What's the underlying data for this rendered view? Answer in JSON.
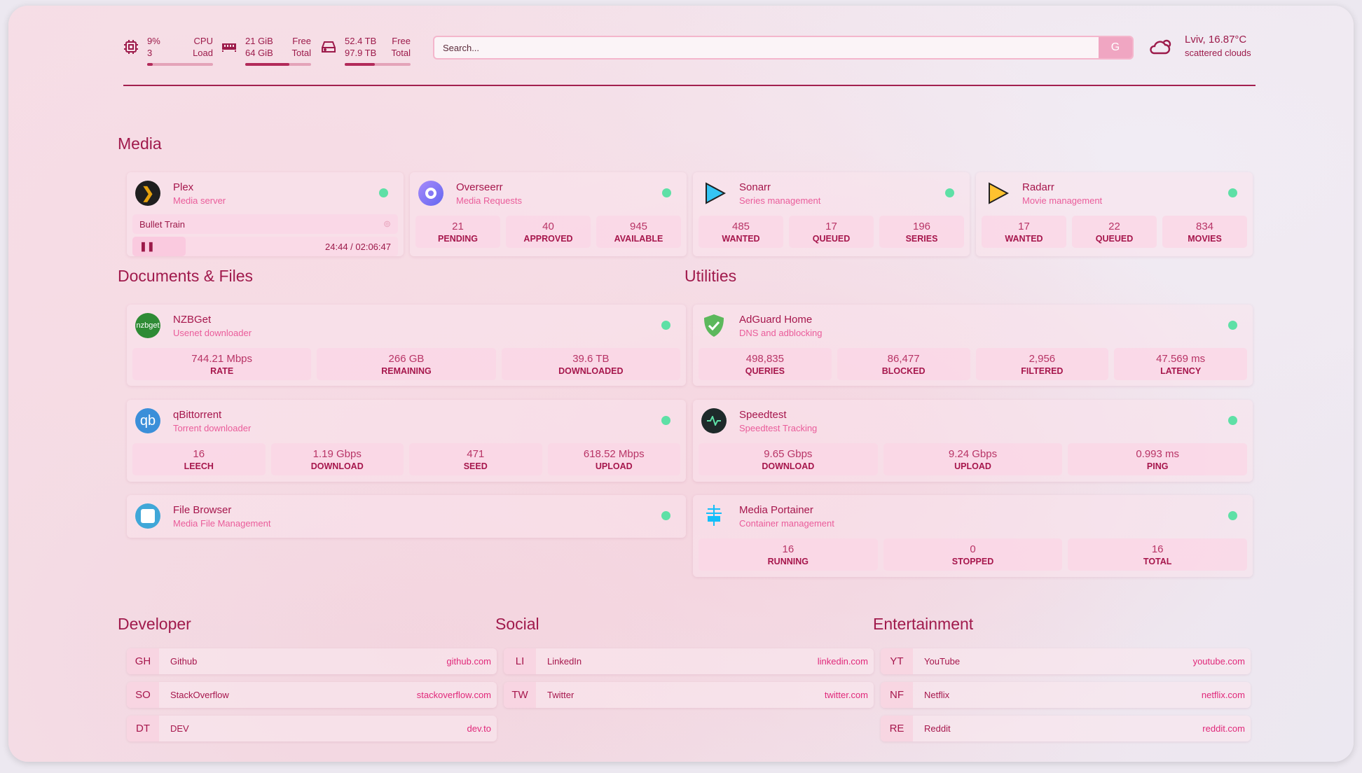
{
  "header": {
    "cpu": {
      "value": "9%",
      "label": "CPU",
      "sub_value": "3",
      "sub_label": "Load",
      "percent": 9
    },
    "memory": {
      "value": "21 GiB",
      "label": "Free",
      "sub_value": "64 GiB",
      "sub_label": "Total",
      "percent": 67
    },
    "disk": {
      "value": "52.4 TB",
      "label": "Free",
      "sub_value": "97.9 TB",
      "sub_label": "Total",
      "percent": 46
    },
    "search": {
      "placeholder": "Search...",
      "button": "G"
    },
    "weather": {
      "location_temp": "Lviv, 16.87°C",
      "condition": "scattered clouds"
    }
  },
  "sections": {
    "media": "Media",
    "documents": "Documents & Files",
    "utilities": "Utilities",
    "developer": "Developer",
    "social": "Social",
    "entertainment": "Entertainment"
  },
  "media": [
    {
      "name": "Plex",
      "desc": "Media server",
      "now_playing": "Bullet Train",
      "time": "24:44 / 02:06:47",
      "progress": 0.2
    },
    {
      "name": "Overseerr",
      "desc": "Media Requests",
      "stats": [
        {
          "v": "21",
          "k": "PENDING"
        },
        {
          "v": "40",
          "k": "APPROVED"
        },
        {
          "v": "945",
          "k": "AVAILABLE"
        }
      ]
    },
    {
      "name": "Sonarr",
      "desc": "Series management",
      "stats": [
        {
          "v": "485",
          "k": "WANTED"
        },
        {
          "v": "17",
          "k": "QUEUED"
        },
        {
          "v": "196",
          "k": "SERIES"
        }
      ]
    },
    {
      "name": "Radarr",
      "desc": "Movie management",
      "stats": [
        {
          "v": "17",
          "k": "WANTED"
        },
        {
          "v": "22",
          "k": "QUEUED"
        },
        {
          "v": "834",
          "k": "MOVIES"
        }
      ]
    }
  ],
  "documents": [
    {
      "name": "NZBGet",
      "desc": "Usenet downloader",
      "icon_text": "nzbget",
      "stats": [
        {
          "v": "744.21 Mbps",
          "k": "RATE"
        },
        {
          "v": "266 GB",
          "k": "REMAINING"
        },
        {
          "v": "39.6 TB",
          "k": "DOWNLOADED"
        }
      ]
    },
    {
      "name": "qBittorrent",
      "desc": "Torrent downloader",
      "icon_text": "qb",
      "stats": [
        {
          "v": "16",
          "k": "LEECH"
        },
        {
          "v": "1.19 Gbps",
          "k": "DOWNLOAD"
        },
        {
          "v": "471",
          "k": "SEED"
        },
        {
          "v": "618.52 Mbps",
          "k": "UPLOAD"
        }
      ]
    },
    {
      "name": "File Browser",
      "desc": "Media File Management"
    }
  ],
  "utilities": [
    {
      "name": "AdGuard Home",
      "desc": "DNS and adblocking",
      "stats": [
        {
          "v": "498,835",
          "k": "QUERIES"
        },
        {
          "v": "86,477",
          "k": "BLOCKED"
        },
        {
          "v": "2,956",
          "k": "FILTERED"
        },
        {
          "v": "47.569 ms",
          "k": "LATENCY"
        }
      ]
    },
    {
      "name": "Speedtest",
      "desc": "Speedtest Tracking",
      "stats": [
        {
          "v": "9.65 Gbps",
          "k": "DOWNLOAD"
        },
        {
          "v": "9.24 Gbps",
          "k": "UPLOAD"
        },
        {
          "v": "0.993 ms",
          "k": "PING"
        }
      ]
    },
    {
      "name": "Media Portainer",
      "desc": "Container management",
      "stats": [
        {
          "v": "16",
          "k": "RUNNING"
        },
        {
          "v": "0",
          "k": "STOPPED"
        },
        {
          "v": "16",
          "k": "TOTAL"
        }
      ]
    }
  ],
  "bookmarks": {
    "developer": [
      {
        "ab": "GH",
        "name": "Github",
        "url": "github.com"
      },
      {
        "ab": "SO",
        "name": "StackOverflow",
        "url": "stackoverflow.com"
      },
      {
        "ab": "DT",
        "name": "DEV",
        "url": "dev.to"
      }
    ],
    "social": [
      {
        "ab": "LI",
        "name": "LinkedIn",
        "url": "linkedin.com"
      },
      {
        "ab": "TW",
        "name": "Twitter",
        "url": "twitter.com"
      }
    ],
    "entertainment": [
      {
        "ab": "YT",
        "name": "YouTube",
        "url": "youtube.com"
      },
      {
        "ab": "NF",
        "name": "Netflix",
        "url": "netflix.com"
      },
      {
        "ab": "RE",
        "name": "Reddit",
        "url": "reddit.com"
      }
    ]
  },
  "colors": {
    "accent": "#a6164c",
    "link": "#e0287a",
    "status_up": "#5ee0a6"
  }
}
